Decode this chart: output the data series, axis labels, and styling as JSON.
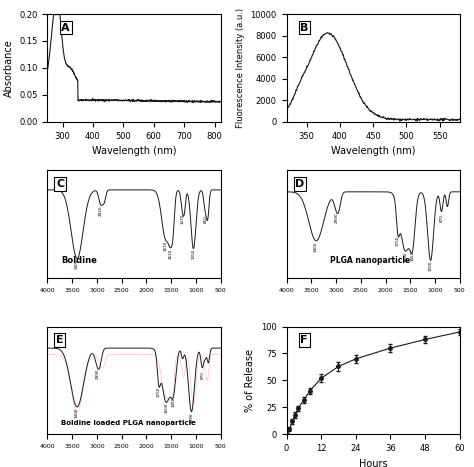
{
  "panel_A": {
    "label": "A",
    "xlabel": "Wavelength (nm)",
    "ylabel": "Absorbance",
    "xlim": [
      250,
      820
    ],
    "ylim": [
      0.0,
      0.2
    ],
    "yticks": [
      0.0,
      0.05,
      0.1,
      0.15,
      0.2
    ],
    "xticks": [
      300,
      400,
      500,
      600,
      700,
      800
    ]
  },
  "panel_B": {
    "label": "B",
    "xlabel": "Wavelength (nm)",
    "ylabel": "Fluorescence Intensity (a.u.)",
    "xlim": [
      320,
      580
    ],
    "ylim": [
      0,
      10000
    ],
    "yticks": [
      0,
      2000,
      4000,
      6000,
      8000,
      10000
    ],
    "xticks": [
      350,
      400,
      450,
      500,
      550
    ]
  },
  "panel_C": {
    "label": "C",
    "text": "Boldine",
    "xlim": [
      4000,
      500
    ],
    "ylim": [
      0,
      110
    ]
  },
  "panel_D": {
    "label": "D",
    "text": "PLGA nanoparticle",
    "xlim": [
      4000,
      500
    ],
    "ylim": [
      0,
      110
    ]
  },
  "panel_E": {
    "label": "E",
    "text": "Boldine loaded PLGA nanoparticle",
    "xlim": [
      4000,
      500
    ],
    "ylim": [
      0,
      110
    ]
  },
  "panel_F": {
    "label": "F",
    "xlabel": "Hours",
    "ylabel": "% of Release",
    "xlim": [
      0,
      60
    ],
    "ylim": [
      0,
      100
    ],
    "yticks": [
      0,
      25,
      50,
      75,
      100
    ],
    "xticks": [
      0,
      12,
      24,
      36,
      48,
      60
    ]
  },
  "bg_color": "#f0f0f0",
  "line_color": "#1a1a1a"
}
